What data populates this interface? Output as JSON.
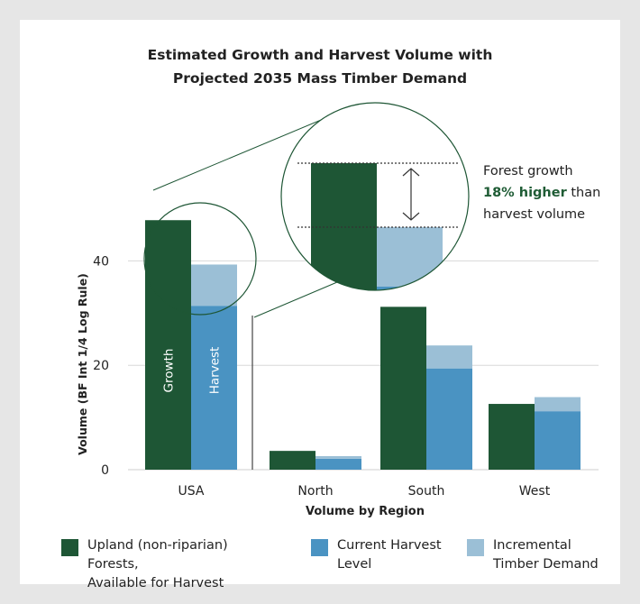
{
  "colors": {
    "growth": "#1e5635",
    "current_harvest": "#4a93c2",
    "incremental": "#9bbfd6",
    "grid": "#d8d8d8",
    "text": "#222222",
    "highlight": "#1f5c35"
  },
  "chart_data": {
    "type": "bar",
    "title_line1": "Estimated Growth and Harvest Volume with",
    "title_line2": "Projected 2035 Mass Timber Demand",
    "xlabel": "Volume by Region",
    "ylabel": "Volume (BF Int 1/4 Log Rule)",
    "ylim": [
      0,
      48
    ],
    "yticks": [
      0,
      20,
      40
    ],
    "grid": true,
    "stacked": true,
    "categories": [
      "USA",
      "North",
      "South",
      "West"
    ],
    "series": [
      {
        "name": "Upland (non-riparian) Forests, Available for Harvest",
        "stack": "growth",
        "values": [
          47.8,
          3.6,
          31.2,
          12.6
        ]
      },
      {
        "name": "Current Harvest Level",
        "stack": "harvest",
        "values": [
          31.4,
          2.1,
          19.4,
          11.2
        ]
      },
      {
        "name": "Incremental Timber Demand",
        "stack": "harvest",
        "values": [
          7.9,
          0.5,
          4.4,
          2.7
        ]
      }
    ],
    "bar_labels": {
      "growth": "Growth",
      "harvest": "Harvest"
    },
    "legend_position": "bottom",
    "annotation": {
      "text_line1": "Forest growth",
      "highlight": "18% higher",
      "text_line2_rest": " than",
      "text_line3": "harvest volume"
    }
  }
}
